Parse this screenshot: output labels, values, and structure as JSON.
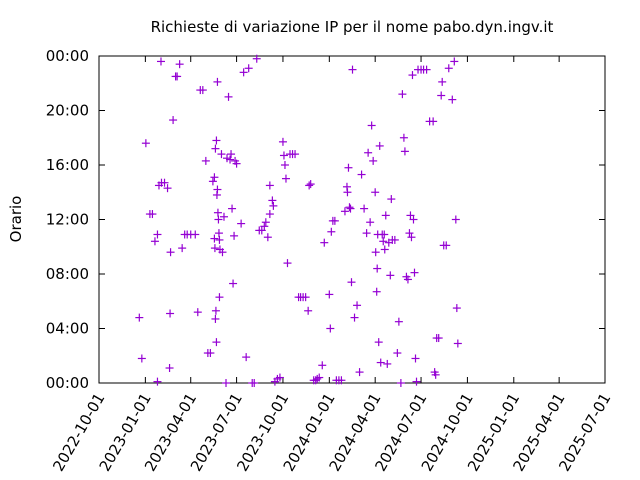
{
  "chart_data": {
    "type": "scatter",
    "title": "Richieste di variazione IP per il nome pabo.dyn.ingv.it",
    "xlabel": "",
    "ylabel": "Orario",
    "xlim": [
      "2022-10-01",
      "2025-07-01"
    ],
    "ylim": [
      0,
      24
    ],
    "x_tick_labels": [
      "2022-10-01",
      "2023-01-01",
      "2023-04-01",
      "2023-07-01",
      "2023-10-01",
      "2024-01-01",
      "2024-04-01",
      "2024-07-01",
      "2024-10-01",
      "2025-01-01",
      "2025-04-01",
      "2025-07-01"
    ],
    "y_tick_labels": [
      "00:00",
      "04:00",
      "08:00",
      "12:00",
      "16:00",
      "20:00",
      "00:00"
    ],
    "grid": false,
    "marker": "+",
    "color": "#9400d3",
    "series": [
      {
        "points": [
          [
            "2022-12-20",
            4.8
          ],
          [
            "2022-12-25",
            1.8
          ],
          [
            "2023-01-02",
            17.6
          ],
          [
            "2023-01-10",
            12.4
          ],
          [
            "2023-01-15",
            12.4
          ],
          [
            "2023-01-20",
            10.4
          ],
          [
            "2023-01-25",
            10.9
          ],
          [
            "2023-01-28",
            14.5
          ],
          [
            "2023-02-02",
            14.7
          ],
          [
            "2023-02-08",
            14.7
          ],
          [
            "2023-02-14",
            14.3
          ],
          [
            "2023-01-25",
            0.1
          ],
          [
            "2023-02-01",
            23.6
          ],
          [
            "2023-02-18",
            1.1
          ],
          [
            "2023-02-19",
            5.1
          ],
          [
            "2023-02-20",
            9.6
          ],
          [
            "2023-02-25",
            19.3
          ],
          [
            "2023-03-02",
            22.5
          ],
          [
            "2023-03-05",
            22.5
          ],
          [
            "2023-03-10",
            23.4
          ],
          [
            "2023-03-15",
            9.9
          ],
          [
            "2023-03-20",
            10.9
          ],
          [
            "2023-03-25",
            10.9
          ],
          [
            "2023-04-01",
            10.9
          ],
          [
            "2023-04-10",
            10.9
          ],
          [
            "2023-04-15",
            5.2
          ],
          [
            "2023-04-20",
            21.5
          ],
          [
            "2023-04-25",
            21.5
          ],
          [
            "2023-05-01",
            16.3
          ],
          [
            "2023-05-05",
            2.2
          ],
          [
            "2023-05-10",
            2.2
          ],
          [
            "2023-05-15",
            14.8
          ],
          [
            "2023-05-18",
            15.1
          ],
          [
            "2023-05-20",
            17.2
          ],
          [
            "2023-05-22",
            17.8
          ],
          [
            "2023-05-23",
            13.8
          ],
          [
            "2023-05-24",
            14.2
          ],
          [
            "2023-05-25",
            12.5
          ],
          [
            "2023-05-26",
            12.0
          ],
          [
            "2023-05-27",
            11.0
          ],
          [
            "2023-05-28",
            10.5
          ],
          [
            "2023-05-29",
            9.8
          ],
          [
            "2023-05-18",
            10.6
          ],
          [
            "2023-05-19",
            9.9
          ],
          [
            "2023-05-20",
            4.7
          ],
          [
            "2023-05-21",
            5.3
          ],
          [
            "2023-05-22",
            3.0
          ],
          [
            "2023-05-24",
            22.1
          ],
          [
            "2023-05-28",
            6.3
          ],
          [
            "2023-06-01",
            16.8
          ],
          [
            "2023-06-03",
            9.6
          ],
          [
            "2023-06-06",
            12.2
          ],
          [
            "2023-06-10",
            0.0
          ],
          [
            "2023-06-12",
            16.5
          ],
          [
            "2023-06-15",
            21.0
          ],
          [
            "2023-06-18",
            16.4
          ],
          [
            "2023-06-20",
            16.8
          ],
          [
            "2023-06-22",
            12.8
          ],
          [
            "2023-06-24",
            7.3
          ],
          [
            "2023-06-26",
            10.8
          ],
          [
            "2023-06-28",
            16.3
          ],
          [
            "2023-07-01",
            16.1
          ],
          [
            "2023-07-10",
            11.7
          ],
          [
            "2023-07-15",
            22.8
          ],
          [
            "2023-07-20",
            1.9
          ],
          [
            "2023-07-25",
            23.1
          ],
          [
            "2023-08-01",
            0.0
          ],
          [
            "2023-08-05",
            0.0
          ],
          [
            "2023-08-10",
            23.8
          ],
          [
            "2023-08-15",
            11.2
          ],
          [
            "2023-08-20",
            11.2
          ],
          [
            "2023-08-25",
            11.5
          ],
          [
            "2023-08-28",
            11.8
          ],
          [
            "2023-09-01",
            10.7
          ],
          [
            "2023-09-05",
            12.4
          ],
          [
            "2023-09-05",
            14.5
          ],
          [
            "2023-09-10",
            13.4
          ],
          [
            "2023-09-12",
            13.0
          ],
          [
            "2023-09-15",
            0.1
          ],
          [
            "2023-09-20",
            0.3
          ],
          [
            "2023-09-25",
            0.4
          ],
          [
            "2023-10-01",
            17.7
          ],
          [
            "2023-10-03",
            16.7
          ],
          [
            "2023-10-05",
            16.0
          ],
          [
            "2023-10-07",
            15.0
          ],
          [
            "2023-10-10",
            8.8
          ],
          [
            "2023-10-15",
            16.8
          ],
          [
            "2023-10-20",
            16.8
          ],
          [
            "2023-10-25",
            16.8
          ],
          [
            "2023-11-01",
            6.3
          ],
          [
            "2023-11-05",
            6.3
          ],
          [
            "2023-11-10",
            6.3
          ],
          [
            "2023-11-15",
            6.3
          ],
          [
            "2023-11-20",
            5.3
          ],
          [
            "2023-11-22",
            14.5
          ],
          [
            "2023-11-25",
            14.6
          ],
          [
            "2023-12-01",
            0.2
          ],
          [
            "2023-12-05",
            0.2
          ],
          [
            "2023-12-08",
            0.3
          ],
          [
            "2023-12-12",
            0.4
          ],
          [
            "2023-12-18",
            1.3
          ],
          [
            "2023-12-22",
            10.3
          ],
          [
            "2024-01-01",
            6.5
          ],
          [
            "2024-01-03",
            4.0
          ],
          [
            "2024-01-05",
            11.1
          ],
          [
            "2024-01-08",
            11.9
          ],
          [
            "2024-01-12",
            11.9
          ],
          [
            "2024-01-15",
            0.2
          ],
          [
            "2024-01-20",
            0.2
          ],
          [
            "2024-01-25",
            0.2
          ],
          [
            "2024-02-01",
            12.6
          ],
          [
            "2024-02-05",
            14.4
          ],
          [
            "2024-02-06",
            14.0
          ],
          [
            "2024-02-08",
            15.8
          ],
          [
            "2024-02-10",
            12.9
          ],
          [
            "2024-02-12",
            12.8
          ],
          [
            "2024-02-14",
            7.4
          ],
          [
            "2024-02-16",
            23.0
          ],
          [
            "2024-02-20",
            4.8
          ],
          [
            "2024-02-25",
            5.7
          ],
          [
            "2024-03-01",
            0.8
          ],
          [
            "2024-03-05",
            15.3
          ],
          [
            "2024-03-10",
            12.8
          ],
          [
            "2024-03-15",
            11.0
          ],
          [
            "2024-03-18",
            16.9
          ],
          [
            "2024-03-22",
            11.8
          ],
          [
            "2024-03-25",
            18.9
          ],
          [
            "2024-03-28",
            16.3
          ],
          [
            "2024-04-01",
            14.0
          ],
          [
            "2024-04-02",
            9.6
          ],
          [
            "2024-04-04",
            6.7
          ],
          [
            "2024-04-05",
            8.4
          ],
          [
            "2024-04-06",
            10.9
          ],
          [
            "2024-04-08",
            3.0
          ],
          [
            "2024-04-10",
            17.4
          ],
          [
            "2024-04-12",
            1.5
          ],
          [
            "2024-04-15",
            10.9
          ],
          [
            "2024-04-17",
            10.4
          ],
          [
            "2024-04-19",
            10.9
          ],
          [
            "2024-04-20",
            9.8
          ],
          [
            "2024-04-22",
            12.3
          ],
          [
            "2024-04-25",
            1.4
          ],
          [
            "2024-04-28",
            10.3
          ],
          [
            "2024-05-01",
            7.9
          ],
          [
            "2024-05-03",
            13.5
          ],
          [
            "2024-05-05",
            10.5
          ],
          [
            "2024-05-10",
            10.5
          ],
          [
            "2024-05-15",
            2.2
          ],
          [
            "2024-05-18",
            4.5
          ],
          [
            "2024-05-22",
            0.0
          ],
          [
            "2024-05-25",
            21.2
          ],
          [
            "2024-05-28",
            18.0
          ],
          [
            "2024-05-30",
            17.0
          ],
          [
            "2024-06-02",
            7.8
          ],
          [
            "2024-06-05",
            7.6
          ],
          [
            "2024-06-08",
            11.0
          ],
          [
            "2024-06-10",
            12.3
          ],
          [
            "2024-06-12",
            10.7
          ],
          [
            "2024-06-14",
            22.6
          ],
          [
            "2024-06-16",
            12.0
          ],
          [
            "2024-06-18",
            8.1
          ],
          [
            "2024-06-20",
            1.8
          ],
          [
            "2024-06-22",
            0.1
          ],
          [
            "2024-06-25",
            23.0
          ],
          [
            "2024-07-01",
            23.0
          ],
          [
            "2024-07-06",
            23.0
          ],
          [
            "2024-07-12",
            23.0
          ],
          [
            "2024-07-18",
            19.2
          ],
          [
            "2024-07-25",
            19.2
          ],
          [
            "2024-07-28",
            0.8
          ],
          [
            "2024-07-30",
            0.6
          ],
          [
            "2024-08-01",
            3.3
          ],
          [
            "2024-08-05",
            3.3
          ],
          [
            "2024-08-10",
            21.1
          ],
          [
            "2024-08-12",
            22.1
          ],
          [
            "2024-08-15",
            10.1
          ],
          [
            "2024-08-20",
            10.1
          ],
          [
            "2024-08-25",
            23.1
          ],
          [
            "2024-09-01",
            20.8
          ],
          [
            "2024-09-05",
            23.6
          ],
          [
            "2024-09-08",
            12.0
          ],
          [
            "2024-09-10",
            5.5
          ],
          [
            "2024-09-12",
            2.9
          ]
        ]
      }
    ]
  }
}
